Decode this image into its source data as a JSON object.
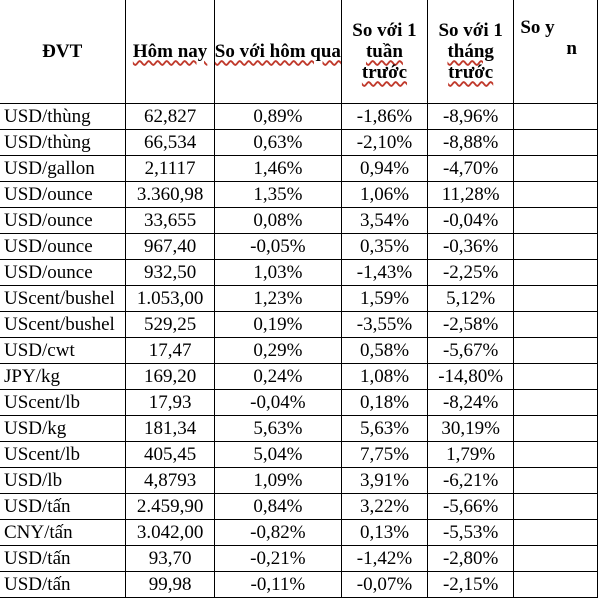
{
  "headers": {
    "unit": "ĐVT",
    "today": "Hôm nay",
    "vs_yesterday": "So với hôm qua",
    "vs_week_a": "So với 1",
    "vs_week_b": "tuần",
    "vs_week_c": "trước",
    "vs_month_a": "So với 1",
    "vs_month_b": "tháng",
    "vs_month_c": "trước",
    "vs_cut_a": "So y",
    "vs_cut_b": "n"
  },
  "rows": [
    {
      "unit": "USD/thùng",
      "today": "62,827",
      "d1": "0,89%",
      "w1": "-1,86%",
      "m1": "-8,96%"
    },
    {
      "unit": "USD/thùng",
      "today": "66,534",
      "d1": "0,63%",
      "w1": "-2,10%",
      "m1": "-8,88%"
    },
    {
      "unit": "USD/gallon",
      "today": "2,1117",
      "d1": "1,46%",
      "w1": "0,94%",
      "m1": "-4,70%"
    },
    {
      "unit": "USD/ounce",
      "today": "3.360,98",
      "d1": "1,35%",
      "w1": "1,06%",
      "m1": "11,28%"
    },
    {
      "unit": "USD/ounce",
      "today": "33,655",
      "d1": "0,08%",
      "w1": "3,54%",
      "m1": "-0,04%"
    },
    {
      "unit": "USD/ounce",
      "today": "967,40",
      "d1": "-0,05%",
      "w1": "0,35%",
      "m1": "-0,36%"
    },
    {
      "unit": "USD/ounce",
      "today": "932,50",
      "d1": "1,03%",
      "w1": "-1,43%",
      "m1": "-2,25%"
    },
    {
      "unit": "UScent/bushel",
      "today": "1.053,00",
      "d1": "1,23%",
      "w1": "1,59%",
      "m1": "5,12%"
    },
    {
      "unit": "UScent/bushel",
      "today": "529,25",
      "d1": "0,19%",
      "w1": "-3,55%",
      "m1": "-2,58%"
    },
    {
      "unit": "USD/cwt",
      "today": "17,47",
      "d1": "0,29%",
      "w1": "0,58%",
      "m1": "-5,67%"
    },
    {
      "unit": "JPY/kg",
      "today": "169,20",
      "d1": "0,24%",
      "w1": "1,08%",
      "m1": "-14,80%"
    },
    {
      "unit": "UScent/lb",
      "today": "17,93",
      "d1": "-0,04%",
      "w1": "0,18%",
      "m1": "-8,24%"
    },
    {
      "unit": "USD/kg",
      "today": "181,34",
      "d1": "5,63%",
      "w1": "5,63%",
      "m1": "30,19%"
    },
    {
      "unit": "UScent/lb",
      "today": "405,45",
      "d1": "5,04%",
      "w1": "7,75%",
      "m1": "1,79%"
    },
    {
      "unit": "USD/lb",
      "today": "4,8793",
      "d1": "1,09%",
      "w1": "3,91%",
      "m1": "-6,21%"
    },
    {
      "unit": "USD/tấn",
      "today": "2.459,90",
      "d1": "0,84%",
      "w1": "3,22%",
      "m1": "-5,66%"
    },
    {
      "unit": "CNY/tấn",
      "today": "3.042,00",
      "d1": "-0,82%",
      "w1": "0,13%",
      "m1": "-5,53%"
    },
    {
      "unit": "USD/tấn",
      "today": "93,70",
      "d1": "-0,21%",
      "w1": "-1,42%",
      "m1": "-2,80%"
    },
    {
      "unit": "USD/tấn",
      "today": "99,98",
      "d1": "-0,11%",
      "w1": "-0,07%",
      "m1": "-2,15%"
    }
  ]
}
